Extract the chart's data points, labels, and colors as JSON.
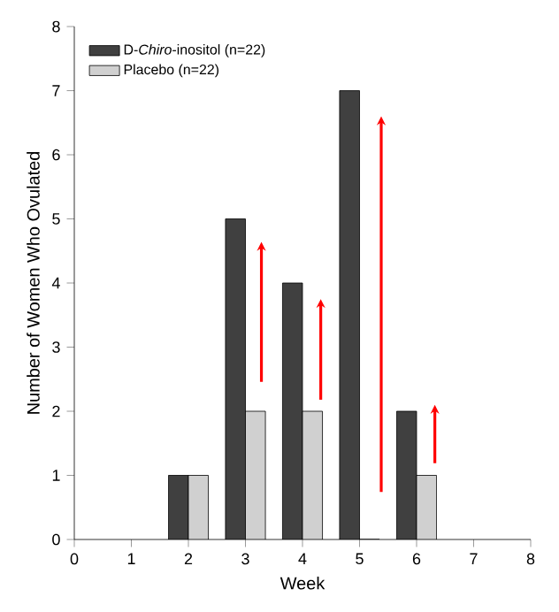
{
  "chart_data": {
    "type": "bar",
    "xlabel": "Week",
    "ylabel": "Number of Women Who Ovulated",
    "x": [
      2,
      3,
      4,
      5,
      6
    ],
    "series": [
      {
        "name": "D-*Chiro*-inositol (n=22)",
        "color": "#404040",
        "values": [
          1,
          5,
          4,
          7,
          2
        ]
      },
      {
        "name": "Placebo (n=22)",
        "color": "#d0d0d0",
        "values": [
          1,
          2,
          2,
          0,
          1
        ]
      }
    ],
    "xlim": [
      0,
      8
    ],
    "xticks": [
      0,
      1,
      2,
      3,
      4,
      5,
      6,
      7,
      8
    ],
    "ylim": [
      0,
      8
    ],
    "yticks": [
      0,
      1,
      2,
      3,
      4,
      5,
      6,
      7,
      8
    ],
    "grid": false,
    "legend": "top left"
  }
}
